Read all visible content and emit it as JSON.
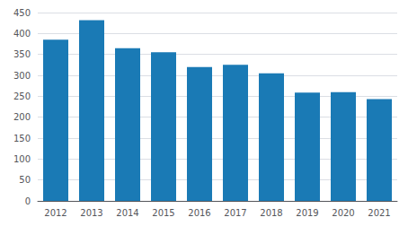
{
  "chart_data": {
    "type": "bar",
    "categories": [
      "2012",
      "2013",
      "2014",
      "2015",
      "2016",
      "2017",
      "2018",
      "2019",
      "2020",
      "2021"
    ],
    "values": [
      385,
      432,
      365,
      355,
      320,
      325,
      305,
      259,
      260,
      243
    ],
    "color": "#1a7ab5",
    "ylim": [
      0,
      450
    ],
    "yticks": [
      0,
      50,
      100,
      150,
      200,
      250,
      300,
      350,
      400,
      450
    ],
    "grid": true
  }
}
